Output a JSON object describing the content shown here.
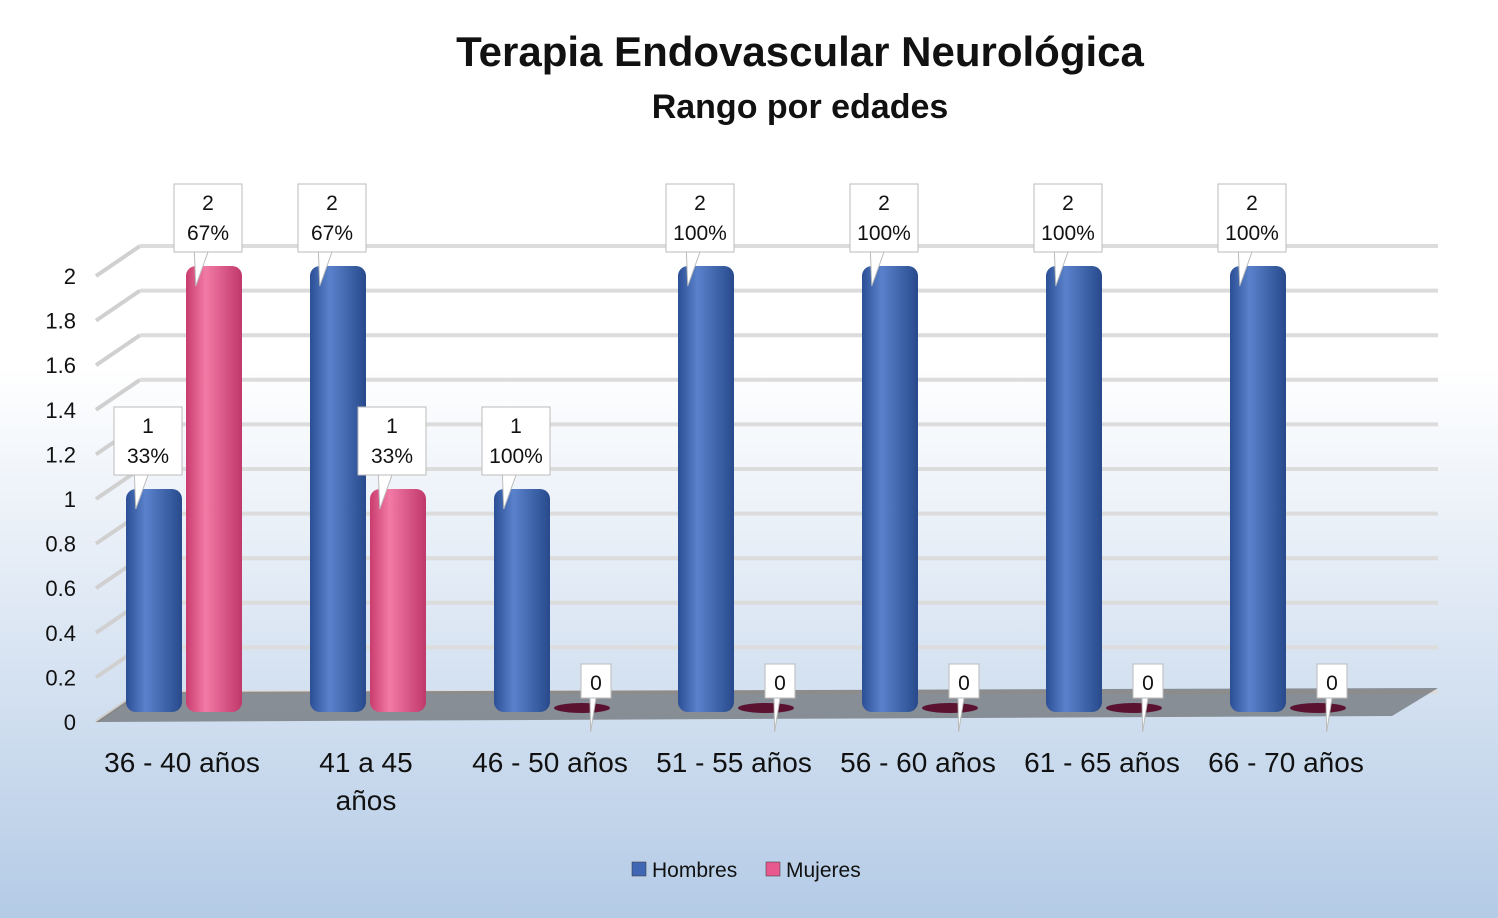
{
  "chart_data": {
    "type": "bar",
    "title": "Terapia Endovascular Neurológica",
    "subtitle": "Rango por edades",
    "categories": [
      "36 - 40 años",
      "41 a 45 años",
      "46 - 50 años",
      "51 - 55 años",
      "56 - 60 años",
      "61 - 65 años",
      "66 - 70 años"
    ],
    "series": [
      {
        "name": "Hombres",
        "color": "#3f67b4",
        "values": [
          1,
          2,
          1,
          2,
          2,
          2,
          2
        ],
        "labels": [
          [
            "1",
            "33%"
          ],
          [
            "2",
            "67%"
          ],
          [
            "1",
            "100%"
          ],
          [
            "2",
            "100%"
          ],
          [
            "2",
            "100%"
          ],
          [
            "2",
            "100%"
          ],
          [
            "2",
            "100%"
          ]
        ]
      },
      {
        "name": "Mujeres",
        "color": "#e85a8e",
        "values": [
          2,
          1,
          0,
          0,
          0,
          0,
          0
        ],
        "labels": [
          [
            "2",
            "67%"
          ],
          [
            "1",
            "33%"
          ],
          [
            "0"
          ],
          [
            "0"
          ],
          [
            "0"
          ],
          [
            "0"
          ],
          [
            "0"
          ]
        ]
      }
    ],
    "y_ticks": [
      "0",
      "0.2",
      "0.4",
      "0.6",
      "0.8",
      "1",
      "1.2",
      "1.4",
      "1.6",
      "1.8",
      "2"
    ],
    "ylim": [
      0,
      2
    ],
    "grid": true,
    "legend_position": "bottom"
  }
}
